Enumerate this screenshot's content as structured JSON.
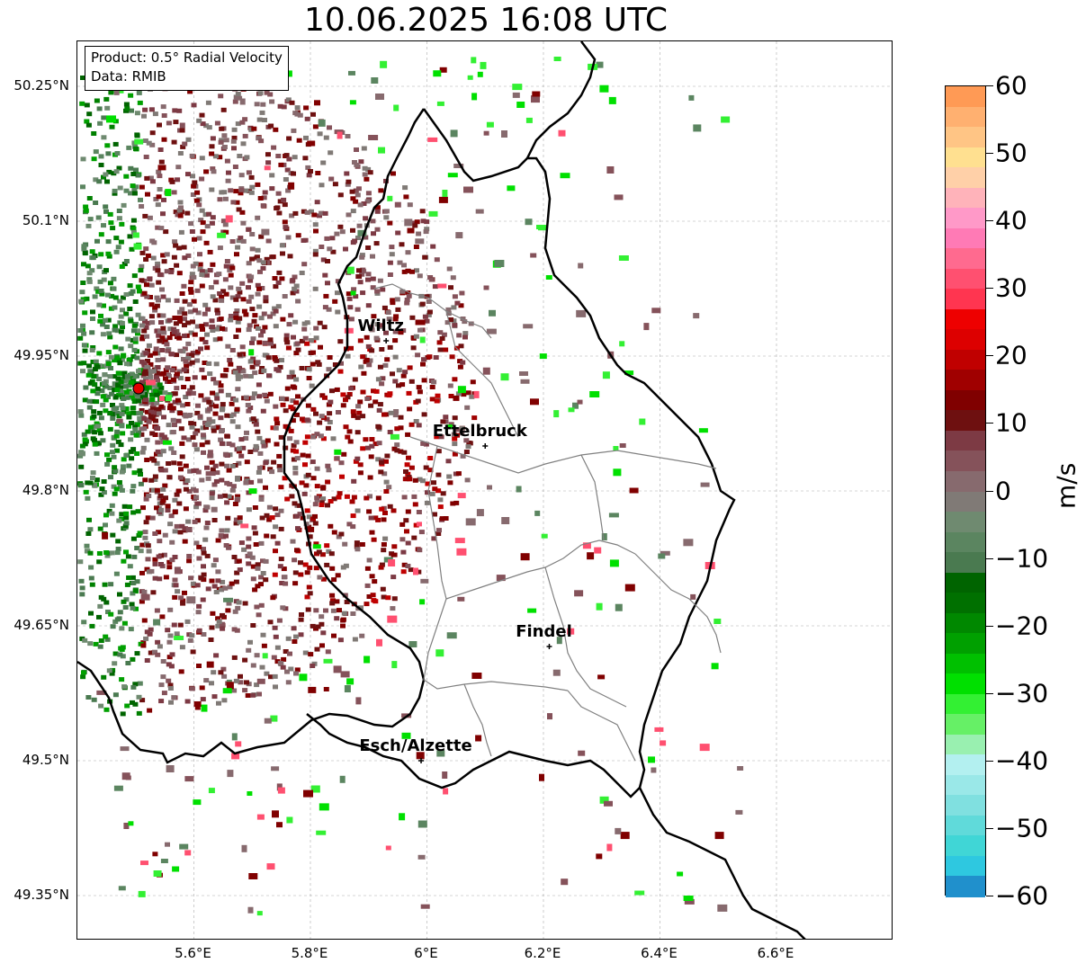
{
  "title": "10.06.2025 16:08 UTC",
  "product_box": {
    "product": "Product: 0.5° Radial Velocity",
    "data": "Data: RMIB"
  },
  "lat_labels": [
    "50.25°N",
    "50.1°N",
    "49.95°N",
    "49.8°N",
    "49.65°N",
    "49.5°N",
    "49.35°N"
  ],
  "lon_labels": [
    "5.6°E",
    "5.8°E",
    "6°E",
    "6.2°E",
    "6.4°E",
    "6.6°E"
  ],
  "cities": [
    {
      "name": "Wiltz",
      "lon": 5.93,
      "lat": 49.967
    },
    {
      "name": "Ettelbruck",
      "lon": 6.1,
      "lat": 49.85
    },
    {
      "name": "Findel",
      "lon": 6.21,
      "lat": 49.627
    },
    {
      "name": "Esch/Alzette",
      "lon": 5.99,
      "lat": 49.5
    }
  ],
  "radar_site": {
    "lon": 5.505,
    "lat": 49.914
  },
  "colorbar": {
    "unit": "m/s",
    "min": -60,
    "max": 60,
    "tick_values": [
      60,
      50,
      40,
      30,
      20,
      10,
      0,
      -10,
      -20,
      -30,
      -40,
      -50,
      -60
    ],
    "tick_labels": [
      "60",
      "50",
      "40",
      "30",
      "20",
      "10",
      "0",
      "−10",
      "−20",
      "−30",
      "−40",
      "−50",
      "−60"
    ],
    "colors_top_to_bottom": [
      "#ff9a55",
      "#ffb070",
      "#ffc585",
      "#ffe090",
      "#ffd0a8",
      "#ffb3ba",
      "#ff99c8",
      "#ff7ab5",
      "#ff6a8f",
      "#ff5070",
      "#ff3550",
      "#ee0000",
      "#dd0000",
      "#c00000",
      "#a00000",
      "#800000",
      "#6e1010",
      "#7d3a44",
      "#85525a",
      "#876a6e",
      "#807a76",
      "#6f8a70",
      "#5b8560",
      "#4a7a50",
      "#006400",
      "#007000",
      "#008800",
      "#00a000",
      "#00c000",
      "#00e000",
      "#33f033",
      "#66f066",
      "#99f0b0",
      "#b3f0f0",
      "#9ae8e8",
      "#80e0e0",
      "#60dada",
      "#40d6d6",
      "#2ec8e0",
      "#2090cc"
    ]
  }
}
